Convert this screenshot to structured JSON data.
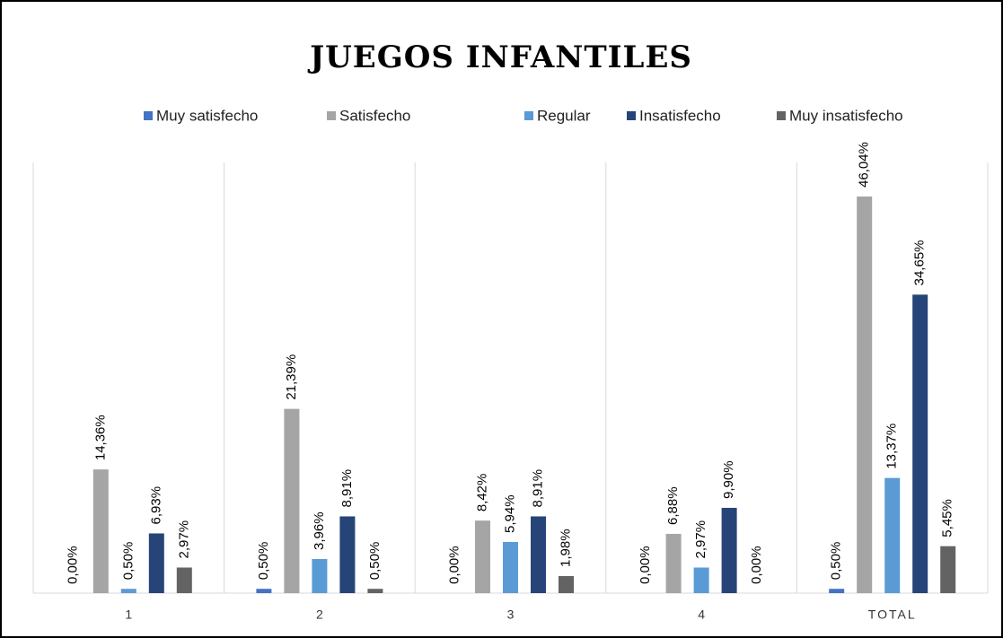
{
  "chart_data": {
    "type": "bar",
    "title": "JUEGOS INFANTILES",
    "categories": [
      "1",
      "2",
      "3",
      "4",
      "TOTAL"
    ],
    "series": [
      {
        "name": "Muy satisfecho",
        "color": "#4472c4",
        "values": [
          0,
          0.5,
          0,
          0,
          0.5
        ],
        "value_labels": [
          "0,00%",
          "0,50%",
          "0,00%",
          "0,00%",
          "0,50%"
        ]
      },
      {
        "name": "Satisfecho",
        "color": "#a5a5a5",
        "values": [
          14.36,
          21.39,
          8.42,
          6.88,
          46.04
        ],
        "value_labels": [
          "14,36%",
          "21,39%",
          "8,42%",
          "6,88%",
          "46,04%"
        ]
      },
      {
        "name": "Regular",
        "color": "#5b9bd5",
        "values": [
          0.5,
          3.96,
          5.94,
          2.97,
          13.37
        ],
        "value_labels": [
          "0,50%",
          "3,96%",
          "5,94%",
          "2,97%",
          "13,37%"
        ]
      },
      {
        "name": "Insatisfecho",
        "color": "#264478",
        "values": [
          6.93,
          8.91,
          8.91,
          9.9,
          34.65
        ],
        "value_labels": [
          "6,93%",
          "8,91%",
          "8,91%",
          "9,90%",
          "34,65%"
        ]
      },
      {
        "name": "Muy insatisfecho",
        "color": "#636363",
        "values": [
          2.97,
          0.5,
          1.98,
          0,
          5.45
        ],
        "value_labels": [
          "2,97%",
          "0,50%",
          "1,98%",
          "0,00%",
          "5,45%"
        ]
      }
    ],
    "ylim": [
      0,
      50
    ],
    "legend": "top"
  }
}
